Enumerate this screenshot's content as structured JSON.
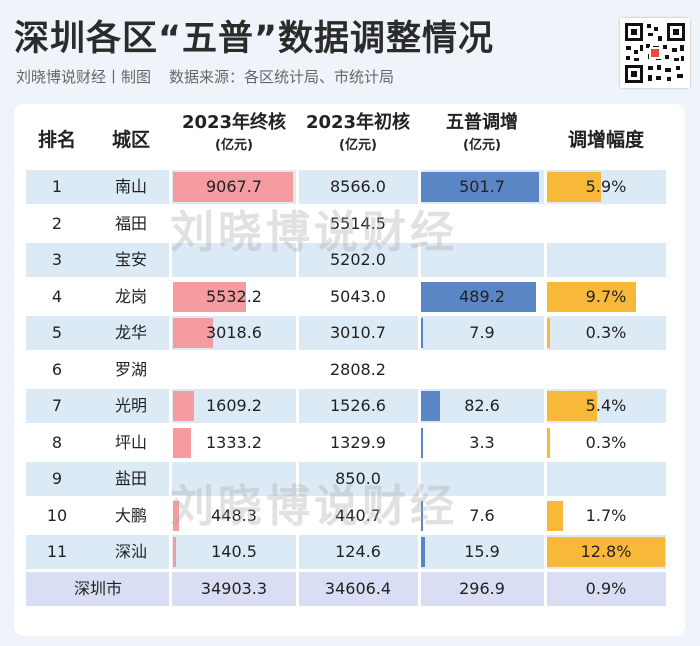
{
  "title": "深圳各区“五普”数据调整情况",
  "subtitle": {
    "author": "刘晓博说财经丨制图",
    "source": "数据来源：各区统计局、市统计局"
  },
  "watermark": "刘晓博说财经",
  "colors": {
    "final_bar": "#f49ca0",
    "increase_bar": "#5b86c5",
    "rate_bar": "#f8b93b",
    "row_shade": "#dceaf6",
    "total_shade": "#d9def4"
  },
  "headers": {
    "rank": "排名",
    "district": "城区",
    "final": {
      "line1": "2023年终核",
      "line2": "(亿元)"
    },
    "initial": {
      "line1": "2023年初核",
      "line2": "(亿元)"
    },
    "increase": {
      "line1": "五普调增",
      "line2": "(亿元)"
    },
    "rate": "调增幅度"
  },
  "rows": [
    {
      "rank": "1",
      "district": "南山",
      "final": "9067.7",
      "initial": "8566.0",
      "increase": "501.7",
      "rate": "5.9%",
      "final_val": 9067.7,
      "inc_val": 501.7,
      "rate_val": 5.9
    },
    {
      "rank": "2",
      "district": "福田",
      "final": "",
      "initial": "5514.5",
      "increase": "",
      "rate": "",
      "final_val": 0,
      "inc_val": 0,
      "rate_val": 0
    },
    {
      "rank": "3",
      "district": "宝安",
      "final": "",
      "initial": "5202.0",
      "increase": "",
      "rate": "",
      "final_val": 0,
      "inc_val": 0,
      "rate_val": 0
    },
    {
      "rank": "4",
      "district": "龙岗",
      "final": "5532.2",
      "initial": "5043.0",
      "increase": "489.2",
      "rate": "9.7%",
      "final_val": 5532.2,
      "inc_val": 489.2,
      "rate_val": 9.7
    },
    {
      "rank": "5",
      "district": "龙华",
      "final": "3018.6",
      "initial": "3010.7",
      "increase": "7.9",
      "rate": "0.3%",
      "final_val": 3018.6,
      "inc_val": 7.9,
      "rate_val": 0.3
    },
    {
      "rank": "6",
      "district": "罗湖",
      "final": "",
      "initial": "2808.2",
      "increase": "",
      "rate": "",
      "final_val": 0,
      "inc_val": 0,
      "rate_val": 0
    },
    {
      "rank": "7",
      "district": "光明",
      "final": "1609.2",
      "initial": "1526.6",
      "increase": "82.6",
      "rate": "5.4%",
      "final_val": 1609.2,
      "inc_val": 82.6,
      "rate_val": 5.4
    },
    {
      "rank": "8",
      "district": "坪山",
      "final": "1333.2",
      "initial": "1329.9",
      "increase": "3.3",
      "rate": "0.3%",
      "final_val": 1333.2,
      "inc_val": 3.3,
      "rate_val": 0.3
    },
    {
      "rank": "9",
      "district": "盐田",
      "final": "",
      "initial": "850.0",
      "increase": "",
      "rate": "",
      "final_val": 0,
      "inc_val": 0,
      "rate_val": 0
    },
    {
      "rank": "10",
      "district": "大鹏",
      "final": "448.3",
      "initial": "440.7",
      "increase": "7.6",
      "rate": "1.7%",
      "final_val": 448.3,
      "inc_val": 7.6,
      "rate_val": 1.7
    },
    {
      "rank": "11",
      "district": "深汕",
      "final": "140.5",
      "initial": "124.6",
      "increase": "15.9",
      "rate": "12.8%",
      "final_val": 140.5,
      "inc_val": 15.9,
      "rate_val": 12.8
    }
  ],
  "total": {
    "district": "深圳市",
    "final": "34903.3",
    "initial": "34606.4",
    "increase": "296.9",
    "rate": "0.9%"
  },
  "scale_max": {
    "final": 9067.7,
    "increase": 501.7,
    "rate": 12.8
  }
}
